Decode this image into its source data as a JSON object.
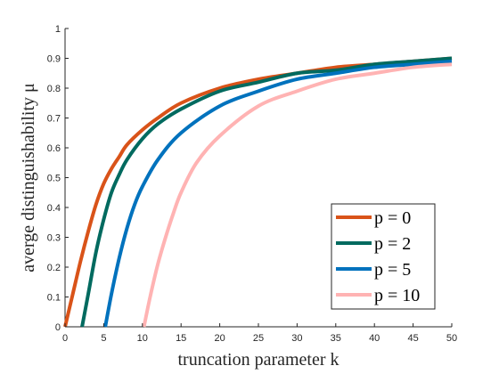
{
  "chart_data": {
    "type": "line",
    "xlabel": "truncation parameter k",
    "ylabel": "averge distinguishability μ",
    "xlim": [
      0,
      50
    ],
    "ylim": [
      0,
      1
    ],
    "xticks": [
      "0",
      "5",
      "10",
      "15",
      "20",
      "25",
      "30",
      "35",
      "40",
      "45",
      "50"
    ],
    "yticks": [
      "0",
      "0.1",
      "0.2",
      "0.3",
      "0.4",
      "0.5",
      "0.6",
      "0.7",
      "0.8",
      "0.9",
      "1"
    ],
    "grid": false,
    "legend_position": "bottom-right",
    "series": [
      {
        "name": "p = 0",
        "color": "#d95319",
        "x": [
          0,
          1,
          2,
          3,
          4,
          5,
          6,
          7,
          8,
          10,
          12,
          15,
          20,
          25,
          30,
          35,
          40,
          45,
          50
        ],
        "y": [
          0,
          0.11,
          0.22,
          0.32,
          0.41,
          0.48,
          0.53,
          0.57,
          0.61,
          0.66,
          0.7,
          0.75,
          0.8,
          0.83,
          0.85,
          0.87,
          0.88,
          0.89,
          0.9
        ]
      },
      {
        "name": "p = 2",
        "color": "#006a5f",
        "x": [
          2.2,
          3,
          4,
          5,
          6,
          7,
          8,
          10,
          12,
          15,
          20,
          25,
          30,
          35,
          40,
          45,
          50
        ],
        "y": [
          0,
          0.11,
          0.25,
          0.36,
          0.45,
          0.51,
          0.56,
          0.63,
          0.68,
          0.73,
          0.79,
          0.82,
          0.85,
          0.86,
          0.88,
          0.89,
          0.9
        ]
      },
      {
        "name": "p = 5",
        "color": "#0072bd",
        "x": [
          5.2,
          6,
          7,
          8,
          9,
          10,
          12,
          15,
          20,
          25,
          30,
          35,
          40,
          45,
          50
        ],
        "y": [
          0,
          0.11,
          0.23,
          0.33,
          0.41,
          0.47,
          0.56,
          0.65,
          0.74,
          0.79,
          0.83,
          0.85,
          0.87,
          0.88,
          0.89
        ]
      },
      {
        "name": "p = 10",
        "color": "#ffb3b3",
        "x": [
          10.2,
          11,
          12,
          13,
          14,
          15,
          17,
          20,
          25,
          30,
          35,
          40,
          45,
          50
        ],
        "y": [
          0,
          0.1,
          0.21,
          0.3,
          0.38,
          0.45,
          0.55,
          0.64,
          0.74,
          0.79,
          0.83,
          0.85,
          0.87,
          0.88
        ]
      }
    ]
  }
}
